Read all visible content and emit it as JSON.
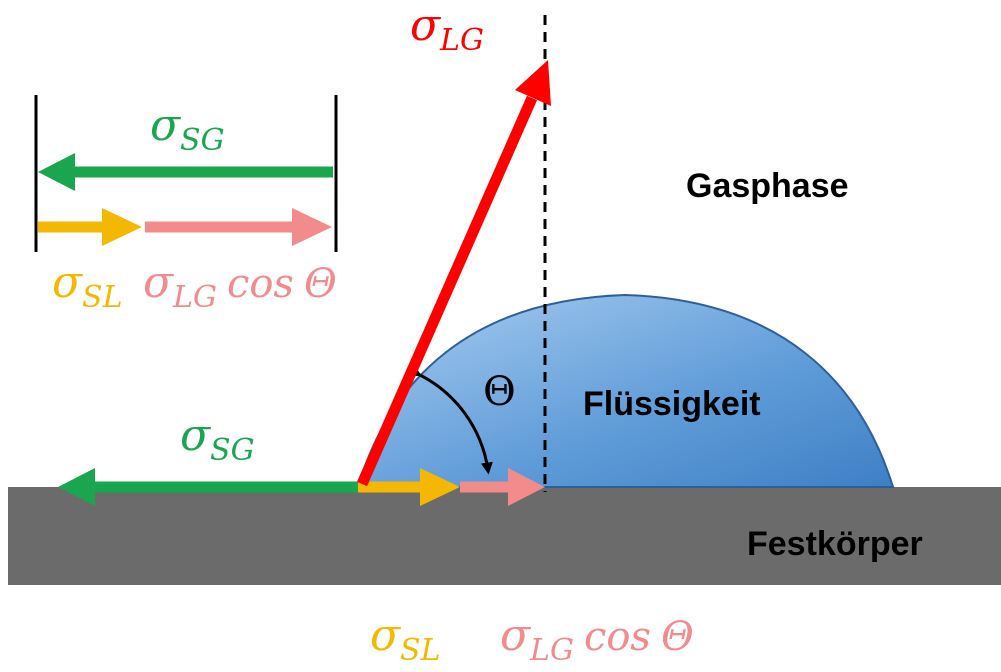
{
  "regions": {
    "gas": "Gasphase",
    "liquid": "Flüssigkeit",
    "solid": "Festkörper"
  },
  "forces": {
    "lg": {
      "symbol": "σ",
      "sub": "LG"
    },
    "sg": {
      "symbol": "σ",
      "sub": "SG"
    },
    "sl": {
      "symbol": "σ",
      "sub": "SL"
    }
  },
  "cos": "cos",
  "angle": "Θ"
}
